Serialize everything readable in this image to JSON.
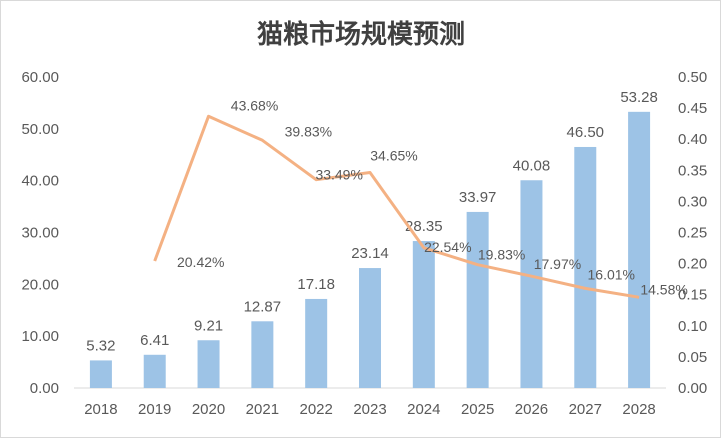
{
  "chart_data": {
    "type": "bar",
    "title": "猫粮市场规模预测",
    "categories": [
      "2018",
      "2019",
      "2020",
      "2021",
      "2022",
      "2023",
      "2024",
      "2025",
      "2026",
      "2027",
      "2028"
    ],
    "series": [
      {
        "name": "市场规模",
        "type": "bar",
        "axis": "left",
        "color": "#9dc3e6",
        "values": [
          5.32,
          6.41,
          9.21,
          12.87,
          17.18,
          23.14,
          28.35,
          33.97,
          40.08,
          46.5,
          53.28
        ],
        "labels": [
          "5.32",
          "6.41",
          "9.21",
          "12.87",
          "17.18",
          "23.14",
          "28.35",
          "33.97",
          "40.08",
          "46.50",
          "53.28"
        ]
      },
      {
        "name": "增长率",
        "type": "line",
        "axis": "right",
        "color": "#f4b183",
        "values": [
          null,
          0.2042,
          0.4368,
          0.3983,
          0.3349,
          0.3465,
          0.2254,
          0.1983,
          0.1797,
          0.1601,
          0.1458
        ],
        "labels": [
          null,
          "20.42%",
          "43.68%",
          "39.83%",
          "33.49%",
          "34.65%",
          "22.54%",
          "19.83%",
          "17.97%",
          "16.01%",
          "14.58%"
        ]
      }
    ],
    "left_axis": {
      "min": 0,
      "max": 60,
      "step": 10,
      "ticks": [
        "0.00",
        "10.00",
        "20.00",
        "30.00",
        "40.00",
        "50.00",
        "60.00"
      ]
    },
    "right_axis": {
      "min": 0,
      "max": 0.5,
      "step": 0.05,
      "ticks": [
        "0.00",
        "0.05",
        "0.10",
        "0.15",
        "0.20",
        "0.25",
        "0.30",
        "0.35",
        "0.40",
        "0.45",
        "0.50"
      ]
    },
    "xlabel": "",
    "ylabel": "",
    "grid": false,
    "legend": "none"
  }
}
